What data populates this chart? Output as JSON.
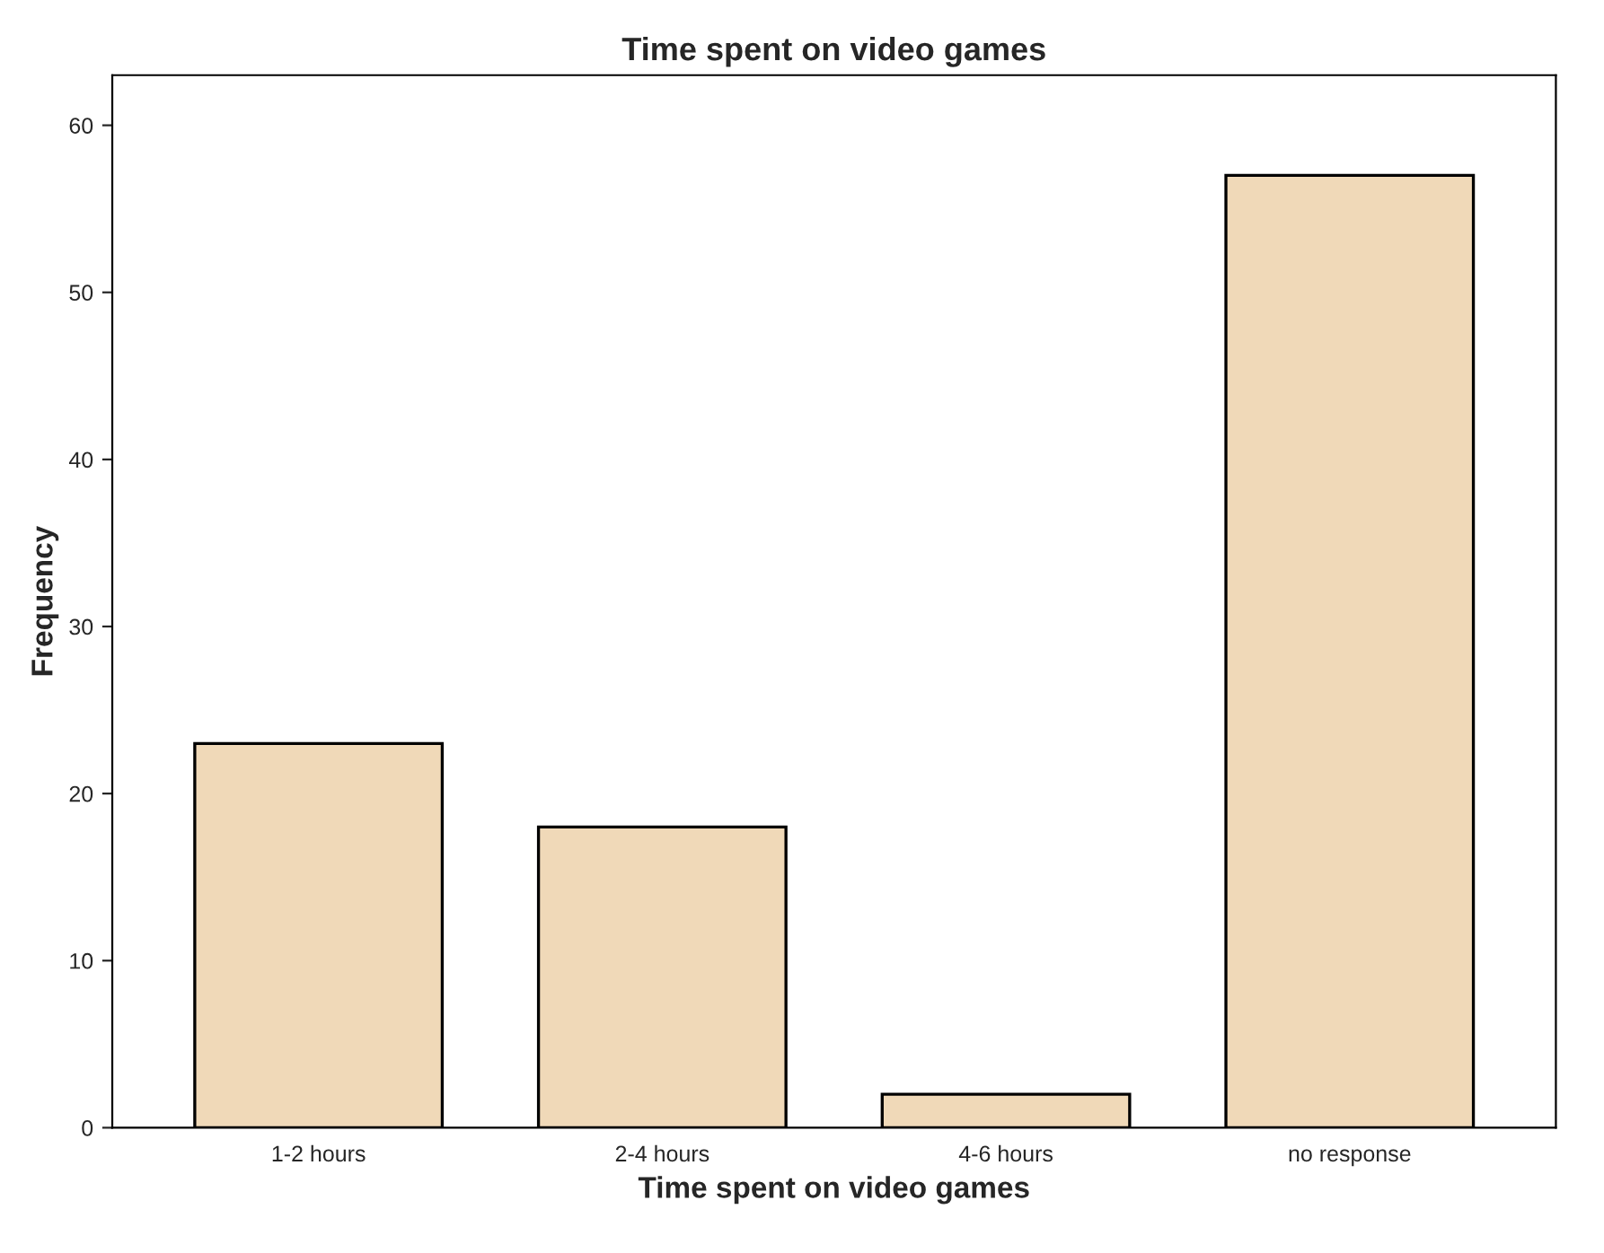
{
  "chart_data": {
    "type": "bar",
    "title": "Time spent on video games",
    "xlabel": "Time spent on video games",
    "ylabel": "Frequency",
    "categories": [
      "1-2 hours",
      "2-4 hours",
      "4-6 hours",
      "no response"
    ],
    "values": [
      23,
      18,
      2,
      57
    ],
    "color": "#f0d9b8",
    "ylim": [
      0,
      63
    ],
    "yticks": [
      0,
      10,
      20,
      30,
      40,
      50,
      60
    ],
    "grid": false,
    "legend": false
  }
}
